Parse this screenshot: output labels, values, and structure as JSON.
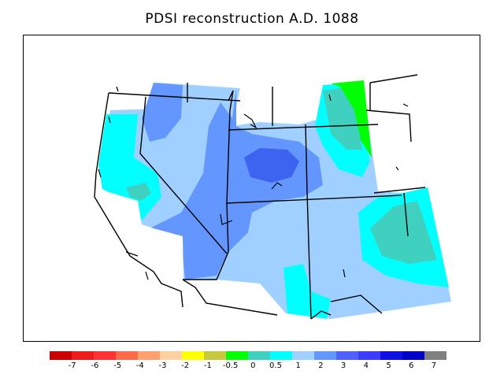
{
  "title": "PDSI reconstruction A.D. 1088",
  "legend": {
    "colors": [
      "#cc0000",
      "#ee1c1c",
      "#ff3333",
      "#ff6a4a",
      "#ffa070",
      "#ffd0a0",
      "#ffff00",
      "#c8c83c",
      "#00ff00",
      "#40d0c0",
      "#00ffff",
      "#a0d0ff",
      "#6496ff",
      "#5060ff",
      "#3c3cff",
      "#1010e6",
      "#0000c8",
      "#808080"
    ],
    "labels": [
      "-7",
      "-6",
      "-5",
      "-4",
      "-3",
      "-2",
      "-1",
      "-0.5",
      "0",
      "0.5",
      "1",
      "2",
      "3",
      "4",
      "5",
      "6",
      "7"
    ]
  },
  "map_regions": {
    "zone_colors": {
      "pdsi_0_to_0.5": "#40d0c0",
      "pdsi_0.5_to_1": "#00ffff",
      "pdsi_1_to_2": "#a0d0ff",
      "pdsi_2_to_3": "#6496ff",
      "pdsi_3_to_4": "#3c64f0",
      "pdsi_minus0.5_to_0": "#00ff00"
    }
  }
}
